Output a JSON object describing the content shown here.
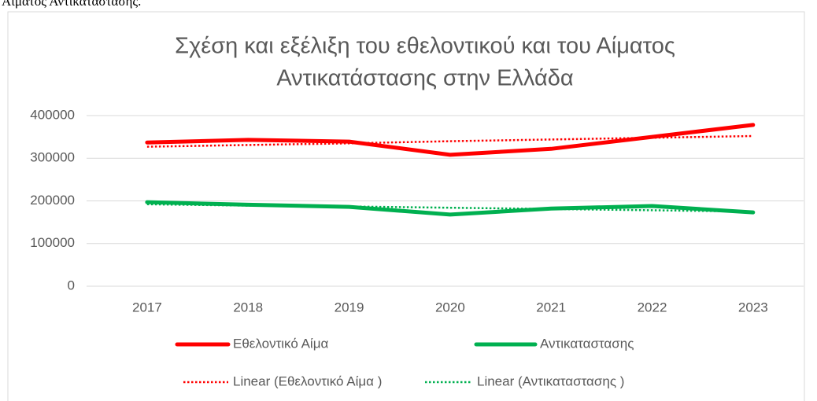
{
  "header_text": "Αίματος Αντικατάστασης.",
  "chart_data": {
    "type": "line",
    "title": [
      "Σχέση και εξέλιξη του εθελοντικού και του Αίματος",
      "Αντικατάστασης στην Ελλάδα"
    ],
    "categories": [
      "2017",
      "2018",
      "2019",
      "2020",
      "2021",
      "2022",
      "2023"
    ],
    "series": [
      {
        "name": "Εθελοντικό Αίμα",
        "color": "#ff0000",
        "values": [
          337000,
          343000,
          339000,
          308000,
          322000,
          350000,
          378000
        ]
      },
      {
        "name": "Αντικαταστασης",
        "color": "#00b050",
        "values": [
          197000,
          191000,
          186000,
          168000,
          182000,
          188000,
          173000
        ]
      },
      {
        "name": "Linear (Εθελοντικό Αίμα )",
        "color": "#ff0000",
        "dash": true,
        "values": [
          327000,
          331000,
          335000,
          340000,
          344000,
          348000,
          352000
        ]
      },
      {
        "name": "Linear (Αντικαταστασης )",
        "color": "#00b050",
        "dash": true,
        "values": [
          192000,
          189000,
          187000,
          184000,
          181000,
          178000,
          175000
        ]
      }
    ],
    "ylim": [
      0,
      400000
    ],
    "yticks": [
      0,
      100000,
      200000,
      300000,
      400000
    ],
    "grid": true,
    "legend": "bottom"
  }
}
